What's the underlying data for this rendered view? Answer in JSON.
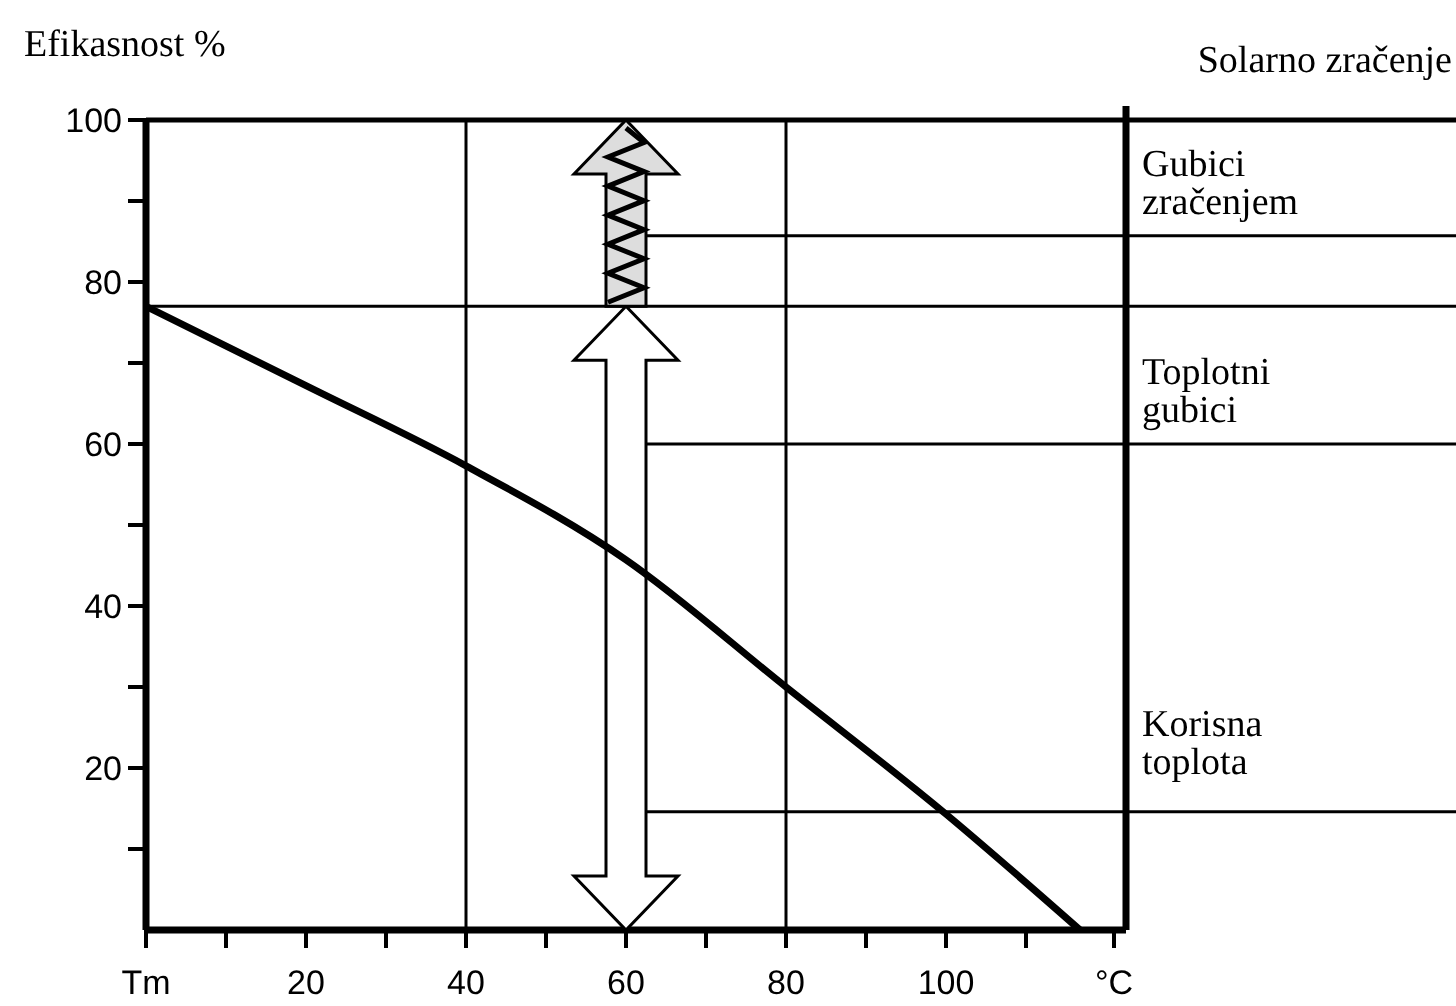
{
  "chart_data": {
    "type": "line",
    "ylabel": "Efikasnost %",
    "x": [
      0,
      20,
      40,
      60,
      80,
      100,
      116.75
    ],
    "series": [
      {
        "color": "#000000",
        "values": [
          77,
          67.2,
          57.3,
          45.7,
          30,
          14.3,
          0
        ]
      }
    ],
    "xlim": [
      0,
      122.5
    ],
    "xticks": [
      {
        "value": 0,
        "label": "Tm"
      },
      {
        "value": 10,
        "label": null
      },
      20,
      {
        "value": 30,
        "label": null
      },
      40,
      {
        "value": 50,
        "label": null
      },
      60,
      {
        "value": 70,
        "label": null
      },
      80,
      {
        "value": 90,
        "label": null
      },
      100,
      {
        "value": 110,
        "label": null
      },
      {
        "value": 121,
        "label": "°C"
      }
    ],
    "ylim": [
      0,
      100
    ],
    "yticks": [
      {
        "value": 10,
        "label": null
      },
      20,
      {
        "value": 30,
        "label": null
      },
      40,
      {
        "value": 50,
        "label": null
      },
      60,
      {
        "value": 70,
        "label": null
      },
      80,
      {
        "value": 90,
        "label": null
      },
      100
    ],
    "ref_lines": [
      {
        "axis": "y",
        "value": 77
      },
      {
        "axis": "x",
        "value": 40
      },
      {
        "axis": "x",
        "value": 80
      },
      {
        "axis": "y",
        "value": 85.7,
        "label": "Gubici zračenjem"
      },
      {
        "axis": "y",
        "value": 60,
        "label": "Toplotni gubici"
      },
      {
        "axis": "y",
        "value": 14.6,
        "label": "Korisna toplota"
      }
    ],
    "annotations": [
      "Solarno zračenje"
    ],
    "marker": "none",
    "line_style": "solid"
  }
}
